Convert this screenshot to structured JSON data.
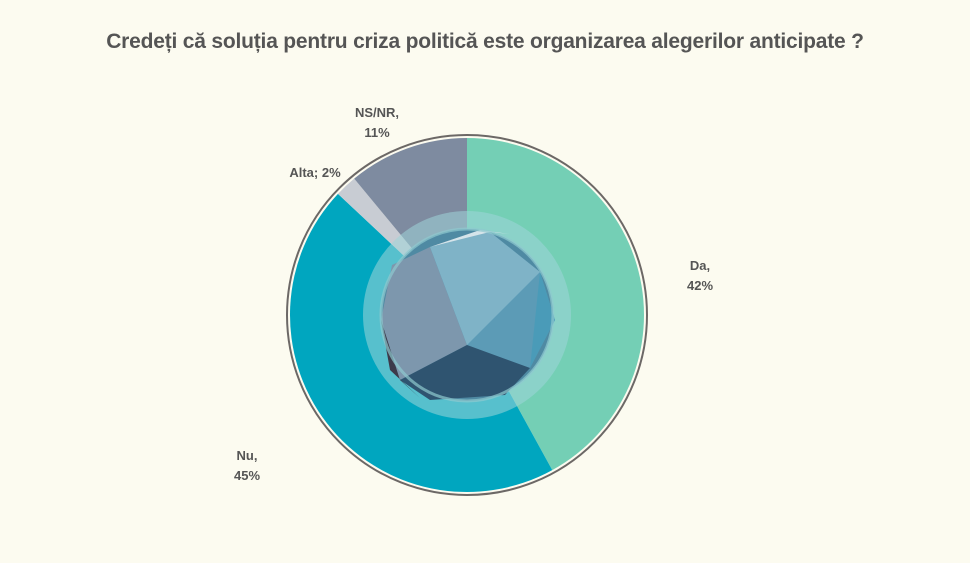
{
  "chart_data": {
    "type": "pie",
    "title": "Credeți că soluția pentru criza politică este organizarea alegerilor anticipate ?",
    "categories": [
      "Da",
      "Nu",
      "Alta",
      "NS/NR"
    ],
    "values": [
      42,
      45,
      2,
      11
    ],
    "labels": [
      {
        "line1": "Da,",
        "line2": "42%"
      },
      {
        "line1": "Nu,",
        "line2": "45%"
      },
      {
        "line1": "Alta; 2%",
        "line2": ""
      },
      {
        "line1": "NS/NR,",
        "line2": "11%"
      }
    ],
    "colors": [
      "#74cfb5",
      "#00a6bf",
      "#c8ccd3",
      "#7e8ba0"
    ],
    "unit": "%",
    "legend": "none"
  }
}
